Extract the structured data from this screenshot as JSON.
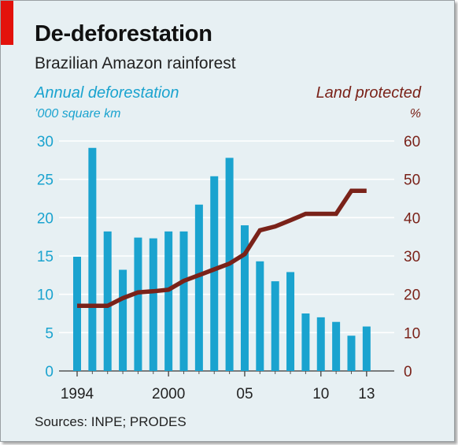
{
  "header": {
    "title": "De-deforestation",
    "subtitle": "Brazilian Amazon rainforest"
  },
  "axes": {
    "left_label": "Annual deforestation",
    "left_unit": "’000 square km",
    "right_label": "Land protected",
    "right_unit": "%"
  },
  "source": "Sources: INPE; PRODES",
  "colors": {
    "bars": "#1aa3cf",
    "line": "#7a2219",
    "background": "#e7f0f3",
    "gridline": "#ffffff",
    "accent_tab": "#e3120b"
  },
  "chart_data": {
    "type": "bar+line",
    "title": "De-deforestation",
    "subtitle": "Brazilian Amazon rainforest",
    "x": [
      1994,
      1995,
      1996,
      1997,
      1998,
      1999,
      2000,
      2001,
      2002,
      2003,
      2004,
      2005,
      2006,
      2007,
      2008,
      2009,
      2010,
      2011,
      2012,
      2013
    ],
    "x_tick_labels": [
      {
        "x": 1994,
        "label": "1994"
      },
      {
        "x": 2000,
        "label": "2000"
      },
      {
        "x": 2005,
        "label": "05"
      },
      {
        "x": 2010,
        "label": "10"
      },
      {
        "x": 2013,
        "label": "13"
      }
    ],
    "series": [
      {
        "name": "Annual deforestation",
        "type": "bar",
        "axis": "left",
        "values": [
          14.9,
          29.1,
          18.2,
          13.2,
          17.4,
          17.3,
          18.2,
          18.2,
          21.7,
          25.4,
          27.8,
          19.0,
          14.3,
          11.7,
          12.9,
          7.5,
          7.0,
          6.4,
          4.6,
          5.8
        ]
      },
      {
        "name": "Land protected",
        "type": "line",
        "axis": "right",
        "values": [
          17,
          17,
          17,
          19,
          20.5,
          20.8,
          21.2,
          23.5,
          25,
          26.5,
          28,
          30.5,
          36.7,
          37.7,
          39.3,
          41,
          41,
          41,
          47,
          47
        ]
      }
    ],
    "y_left": {
      "label": "Annual deforestation",
      "unit": "’000 square km",
      "ylim": [
        0,
        30
      ],
      "ticks": [
        0,
        5,
        10,
        15,
        20,
        25,
        30
      ]
    },
    "y_right": {
      "label": "Land protected",
      "unit": "%",
      "ylim": [
        0,
        60
      ],
      "ticks": [
        0,
        10,
        20,
        30,
        40,
        50,
        60
      ]
    },
    "grid": true
  }
}
